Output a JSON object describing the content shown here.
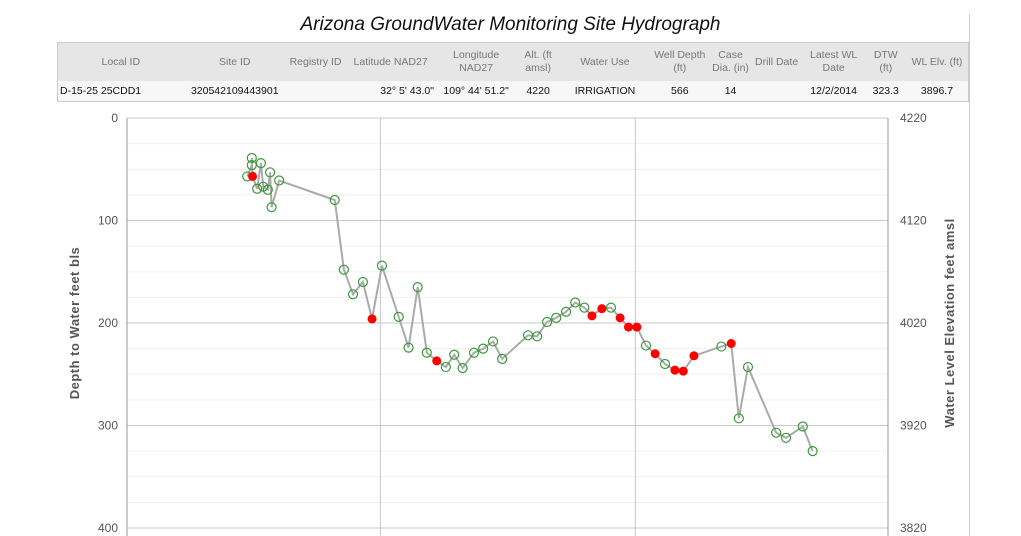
{
  "title": "Arizona GroundWater Monitoring Site Hydrograph",
  "table": {
    "headers": [
      "Local ID",
      "Site ID",
      "Registry ID",
      "Latitude NAD27",
      "Longitude NAD27",
      "Alt. (ft amsl)",
      "Water Use",
      "Well Depth (ft)",
      "Case Dia. (in)",
      "Drill Date",
      "Latest WL Date",
      "DTW (ft)",
      "WL Elv. (ft)"
    ],
    "row": [
      "D-15-25 25CDD1",
      "320542109443901",
      "",
      "32° 5' 43.0\"",
      "109° 44' 51.2\"",
      "4220",
      "IRRIGATION",
      "566",
      "14",
      "",
      "12/2/2014",
      "323.3",
      "3896.7"
    ]
  },
  "chart_data": {
    "type": "scatter",
    "title": "Arizona GroundWater Monitoring Site Hydrograph",
    "ylabel": "Depth to Water feet bls",
    "y2label": "Water Level Elevation feet amsl",
    "ylim": [
      0,
      400
    ],
    "y_inverted": true,
    "y2lim": [
      4220,
      3820
    ],
    "yticks": [
      "0",
      "100",
      "200",
      "300",
      "400"
    ],
    "y2ticks": [
      "4220",
      "4120",
      "4020",
      "3920",
      "3820"
    ],
    "grid": true,
    "colors": {
      "line": "#aaaaaa",
      "open_marker": "#3a9a3a",
      "filled_marker": "#ff0000"
    },
    "x_note": "relative time position (no date labels visible)",
    "points": [
      {
        "t": 0.158,
        "depth": 57,
        "f": 0
      },
      {
        "t": 0.164,
        "depth": 46,
        "f": 0
      },
      {
        "t": 0.164,
        "depth": 39,
        "f": 0
      },
      {
        "t": 0.165,
        "depth": 57,
        "f": 1
      },
      {
        "t": 0.171,
        "depth": 69,
        "f": 0
      },
      {
        "t": 0.176,
        "depth": 44,
        "f": 0
      },
      {
        "t": 0.179,
        "depth": 67,
        "f": 0
      },
      {
        "t": 0.185,
        "depth": 70,
        "f": 0
      },
      {
        "t": 0.188,
        "depth": 53,
        "f": 0
      },
      {
        "t": 0.19,
        "depth": 87,
        "f": 0
      },
      {
        "t": 0.2,
        "depth": 61,
        "f": 0
      },
      {
        "t": 0.273,
        "depth": 80,
        "f": 0
      },
      {
        "t": 0.285,
        "depth": 148,
        "f": 0
      },
      {
        "t": 0.297,
        "depth": 172,
        "f": 0
      },
      {
        "t": 0.31,
        "depth": 160,
        "f": 0
      },
      {
        "t": 0.322,
        "depth": 196,
        "f": 1
      },
      {
        "t": 0.335,
        "depth": 144,
        "f": 0
      },
      {
        "t": 0.357,
        "depth": 194,
        "f": 0
      },
      {
        "t": 0.37,
        "depth": 224,
        "f": 0
      },
      {
        "t": 0.382,
        "depth": 165,
        "f": 0
      },
      {
        "t": 0.394,
        "depth": 229,
        "f": 0
      },
      {
        "t": 0.407,
        "depth": 237,
        "f": 1
      },
      {
        "t": 0.419,
        "depth": 243,
        "f": 0
      },
      {
        "t": 0.43,
        "depth": 231,
        "f": 0
      },
      {
        "t": 0.441,
        "depth": 244,
        "f": 0
      },
      {
        "t": 0.456,
        "depth": 229,
        "f": 0
      },
      {
        "t": 0.468,
        "depth": 225,
        "f": 0
      },
      {
        "t": 0.481,
        "depth": 218,
        "f": 0
      },
      {
        "t": 0.493,
        "depth": 235,
        "f": 0
      },
      {
        "t": 0.527,
        "depth": 212,
        "f": 0
      },
      {
        "t": 0.539,
        "depth": 213,
        "f": 0
      },
      {
        "t": 0.552,
        "depth": 199,
        "f": 0
      },
      {
        "t": 0.564,
        "depth": 195,
        "f": 0
      },
      {
        "t": 0.577,
        "depth": 189,
        "f": 0
      },
      {
        "t": 0.589,
        "depth": 180,
        "f": 0
      },
      {
        "t": 0.601,
        "depth": 185,
        "f": 0
      },
      {
        "t": 0.611,
        "depth": 193,
        "f": 1
      },
      {
        "t": 0.624,
        "depth": 186,
        "f": 1
      },
      {
        "t": 0.636,
        "depth": 185,
        "f": 0
      },
      {
        "t": 0.648,
        "depth": 195,
        "f": 1
      },
      {
        "t": 0.659,
        "depth": 204,
        "f": 1
      },
      {
        "t": 0.67,
        "depth": 204,
        "f": 1
      },
      {
        "t": 0.682,
        "depth": 222,
        "f": 0
      },
      {
        "t": 0.694,
        "depth": 230,
        "f": 1
      },
      {
        "t": 0.707,
        "depth": 240,
        "f": 0
      },
      {
        "t": 0.72,
        "depth": 246,
        "f": 1
      },
      {
        "t": 0.731,
        "depth": 247,
        "f": 1
      },
      {
        "t": 0.745,
        "depth": 232,
        "f": 1
      },
      {
        "t": 0.781,
        "depth": 223,
        "f": 0
      },
      {
        "t": 0.794,
        "depth": 220,
        "f": 1
      },
      {
        "t": 0.804,
        "depth": 293,
        "f": 0
      },
      {
        "t": 0.816,
        "depth": 243,
        "f": 0
      },
      {
        "t": 0.853,
        "depth": 307,
        "f": 0
      },
      {
        "t": 0.866,
        "depth": 312,
        "f": 0
      },
      {
        "t": 0.888,
        "depth": 301,
        "f": 0
      },
      {
        "t": 0.901,
        "depth": 325,
        "f": 0
      }
    ]
  }
}
